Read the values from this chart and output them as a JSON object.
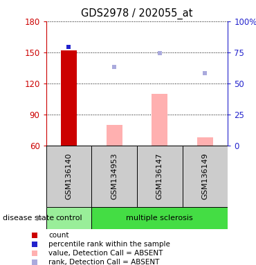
{
  "title": "GDS2978 / 202055_at",
  "samples": [
    "GSM136140",
    "GSM134953",
    "GSM136147",
    "GSM136149"
  ],
  "ylim_left": [
    60,
    180
  ],
  "ylim_right": [
    0,
    100
  ],
  "yticks_left": [
    60,
    90,
    120,
    150,
    180
  ],
  "yticks_right": [
    0,
    25,
    50,
    75,
    100
  ],
  "yticklabels_right": [
    "0",
    "25",
    "50",
    "75",
    "100%"
  ],
  "bar_count": {
    "GSM136140": 152
  },
  "bar_value_absent": {
    "GSM134953": 80,
    "GSM136147": 110,
    "GSM136149": 68
  },
  "dot_rank_present": {
    "GSM136140": 155
  },
  "dot_rank_absent": {
    "GSM134953": 136,
    "GSM136147": 149,
    "GSM136149": 130
  },
  "colors": {
    "count_bar": "#cc0000",
    "rank_dot_present": "#2222cc",
    "value_bar_absent": "#ffb0b0",
    "rank_dot_absent": "#aaaadd",
    "control_bg": "#99ee99",
    "ms_bg": "#44dd44",
    "xticklabel_bg": "#cccccc",
    "left_axis": "#cc0000",
    "right_axis": "#2222cc"
  },
  "legend_items": [
    {
      "color": "#cc0000",
      "label": "count"
    },
    {
      "color": "#2222cc",
      "label": "percentile rank within the sample"
    },
    {
      "color": "#ffb0b0",
      "label": "value, Detection Call = ABSENT"
    },
    {
      "color": "#aaaadd",
      "label": "rank, Detection Call = ABSENT"
    }
  ],
  "bar_width": 0.35
}
